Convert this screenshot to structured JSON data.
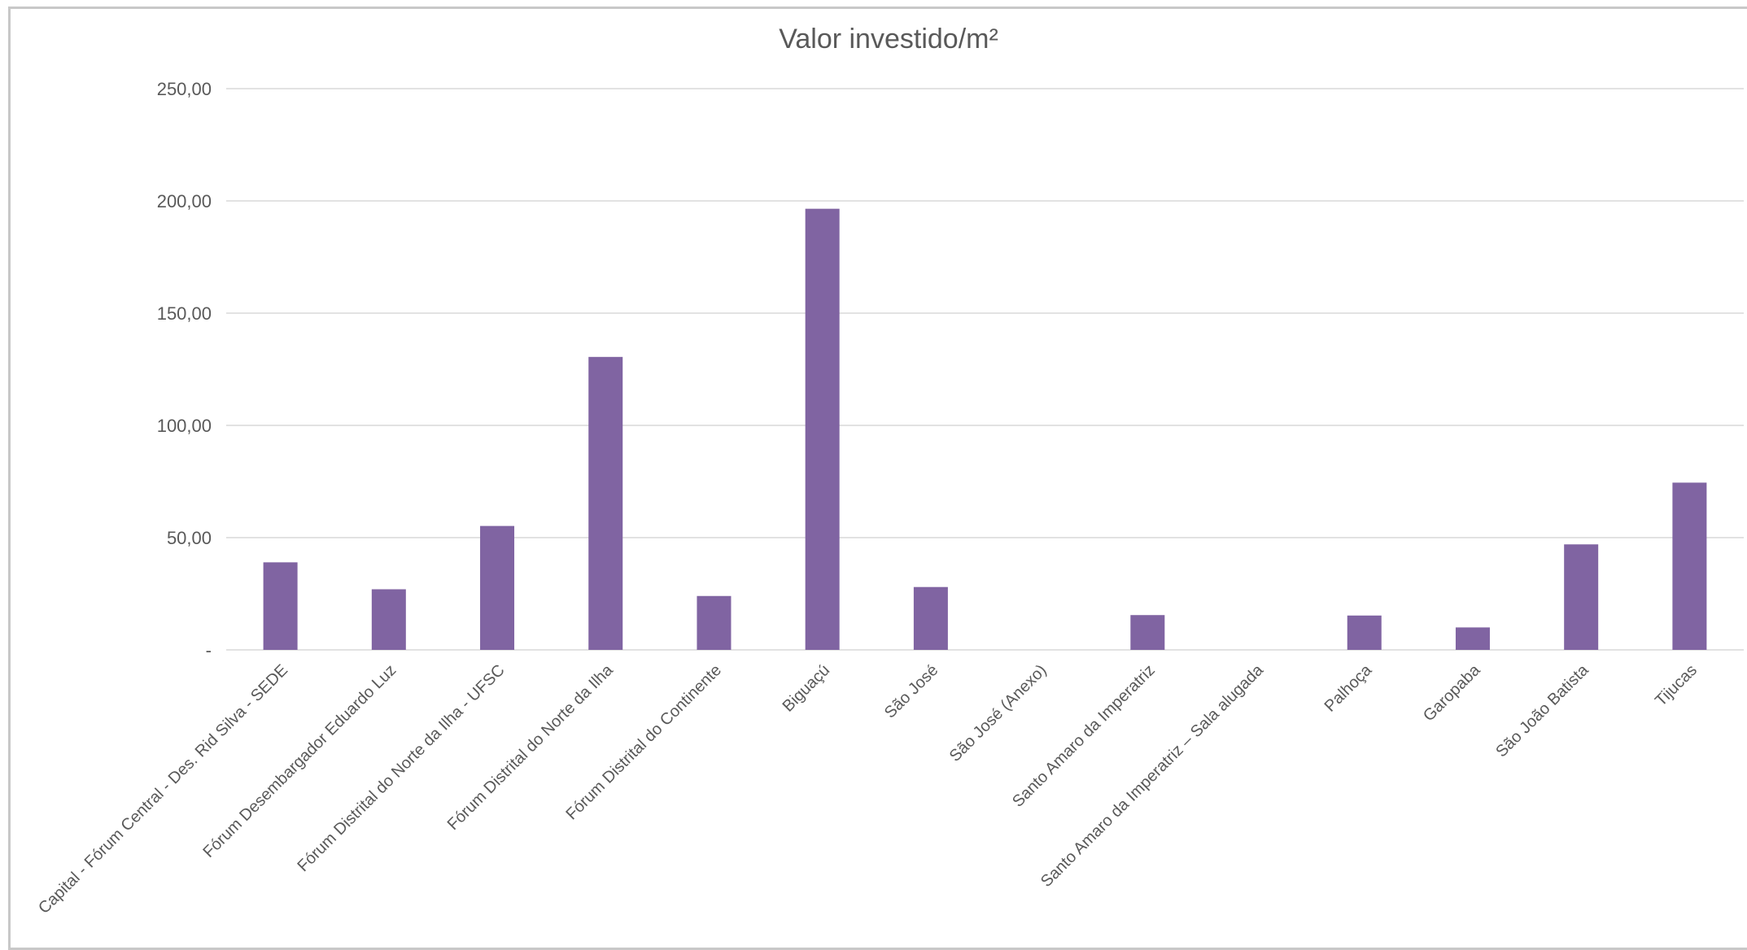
{
  "chart_data": {
    "type": "bar",
    "title": "Valor investido/m²",
    "xlabel": "",
    "ylabel": "",
    "ylim": [
      0,
      250
    ],
    "yticks": [
      0,
      50,
      100,
      150,
      200,
      250
    ],
    "ytick_labels": [
      "-",
      "50,00",
      "100,00",
      "150,00",
      "200,00",
      "250,00"
    ],
    "grid": true,
    "legend": "none",
    "bar_color": "#8064a2",
    "categories": [
      "Capital - Fórum Central - Des. Rid Silva - SEDE",
      "Fórum Desembargador Eduardo Luz",
      "Fórum Distrital do Norte da Ilha - UFSC",
      "Fórum Distrital do Norte da Ilha",
      "Fórum Distrital do Continente",
      "Biguaçú",
      "São José",
      "São José (Anexo)",
      "Santo Amaro da Imperatriz",
      "Santo Amaro da Imperatriz – Sala alugada",
      "Palhoça",
      "Garopaba",
      "São João Batista",
      "Tijucas"
    ],
    "values": [
      39,
      27,
      55.2,
      130.5,
      24,
      196.5,
      28,
      0,
      15.5,
      0,
      15.3,
      10,
      47,
      74.5
    ]
  }
}
